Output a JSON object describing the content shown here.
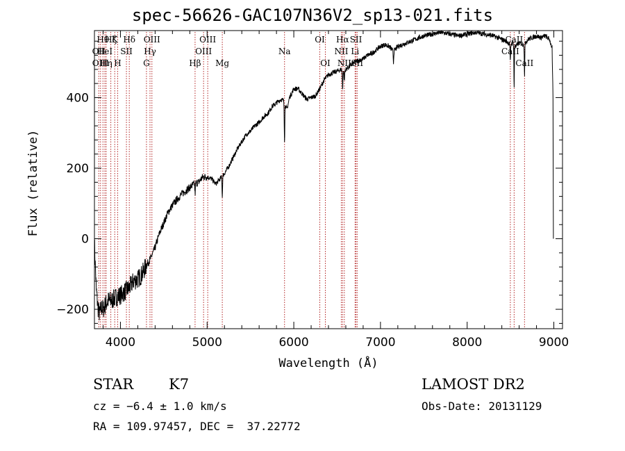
{
  "title": "spec-56626-GAC107N36V2_sp13-021.fits",
  "info": {
    "class": "STAR",
    "subclass": "K7",
    "cz": "cz = −6.4 ± 1.0 km/s",
    "coords": "RA = 109.97457, DEC =  37.22772",
    "survey": "LAMOST DR2",
    "obs_date": "Obs-Date: 20131129"
  },
  "colors": {
    "spectrum": "#000000",
    "lines": "#b22222",
    "frame": "#000000"
  },
  "chart_data": {
    "type": "line",
    "title": "spec-56626-GAC107N36V2_sp13-021.fits",
    "xlabel": "Wavelength (Å)",
    "ylabel": "Flux (relative)",
    "xlim": [
      3700,
      9100
    ],
    "ylim": [
      -255,
      590
    ],
    "xticks": [
      4000,
      5000,
      6000,
      7000,
      8000,
      9000
    ],
    "xtick_labels": [
      "4000",
      "5000",
      "6000",
      "7000",
      "8000",
      "9000"
    ],
    "yticks": [
      -200,
      0,
      200,
      400
    ],
    "ytick_labels": [
      "−200",
      "0",
      "200",
      "400"
    ],
    "grid": false,
    "spectrum": {
      "x": [
        3700,
        3720,
        3740,
        3760,
        3780,
        3800,
        3830,
        3860,
        3900,
        3950,
        4000,
        4050,
        4100,
        4150,
        4200,
        4250,
        4300,
        4350,
        4400,
        4450,
        4500,
        4550,
        4600,
        4650,
        4700,
        4750,
        4800,
        4850,
        4900,
        4950,
        5000,
        5050,
        5100,
        5150,
        5200,
        5250,
        5300,
        5350,
        5400,
        5450,
        5500,
        5550,
        5600,
        5650,
        5700,
        5750,
        5800,
        5850,
        5890,
        5920,
        5950,
        6000,
        6050,
        6100,
        6150,
        6200,
        6250,
        6300,
        6350,
        6400,
        6450,
        6500,
        6550,
        6563,
        6600,
        6650,
        6700,
        6750,
        6800,
        6850,
        6900,
        6950,
        7000,
        7050,
        7100,
        7150,
        7200,
        7300,
        7400,
        7500,
        7600,
        7700,
        7800,
        7900,
        8000,
        8100,
        8200,
        8300,
        8400,
        8450,
        8500,
        8540,
        8560,
        8600,
        8650,
        8700,
        8750,
        8800,
        8850,
        8900,
        8950,
        8980,
        8990,
        8995
      ],
      "y": [
        -10,
        -140,
        -195,
        -215,
        -195,
        -200,
        -185,
        -175,
        -175,
        -165,
        -160,
        -150,
        -140,
        -120,
        -115,
        -100,
        -75,
        -55,
        -25,
        15,
        45,
        75,
        95,
        110,
        125,
        135,
        145,
        155,
        160,
        175,
        175,
        170,
        155,
        170,
        185,
        205,
        230,
        255,
        275,
        295,
        305,
        320,
        330,
        345,
        355,
        375,
        385,
        395,
        390,
        365,
        400,
        425,
        425,
        410,
        395,
        400,
        405,
        425,
        450,
        465,
        470,
        475,
        480,
        470,
        480,
        490,
        500,
        505,
        510,
        520,
        525,
        535,
        545,
        550,
        545,
        530,
        545,
        555,
        565,
        575,
        580,
        585,
        580,
        575,
        580,
        585,
        580,
        575,
        565,
        560,
        550,
        560,
        545,
        555,
        550,
        565,
        570,
        575,
        570,
        575,
        565,
        540,
        400,
        0
      ]
    },
    "lines": [
      {
        "x": 3750,
        "label": "OII",
        "row": 2
      },
      {
        "x": 3770,
        "label": "OIII",
        "row": 3
      },
      {
        "x": 3798,
        "label": "Hθ",
        "row": 1
      },
      {
        "x": 3820,
        "label": "HeI",
        "row": 2
      },
      {
        "x": 3835,
        "label": "Hη",
        "row": 3
      },
      {
        "x": 3889,
        "label": "Hζ",
        "row": 1
      },
      {
        "x": 3934,
        "label": "K",
        "row": 1
      },
      {
        "x": 3968,
        "label": "H",
        "row": 3
      },
      {
        "x": 4069,
        "label": "SII",
        "row": 2
      },
      {
        "x": 4102,
        "label": "Hδ",
        "row": 1
      },
      {
        "x": 4300,
        "label": "G",
        "row": 3
      },
      {
        "x": 4341,
        "label": "Hγ",
        "row": 2
      },
      {
        "x": 4363,
        "label": "OIII",
        "row": 1
      },
      {
        "x": 4861,
        "label": "Hβ",
        "row": 3
      },
      {
        "x": 4959,
        "label": "OIII",
        "row": 2
      },
      {
        "x": 5007,
        "label": "OIII",
        "row": 1
      },
      {
        "x": 5175,
        "label": "Mg",
        "row": 3
      },
      {
        "x": 5893,
        "label": "Na",
        "row": 2
      },
      {
        "x": 6300,
        "label": "OI",
        "row": 1
      },
      {
        "x": 6364,
        "label": "OI",
        "row": 3
      },
      {
        "x": 6548,
        "label": "NII",
        "row": 2
      },
      {
        "x": 6563,
        "label": "Hα",
        "row": 1
      },
      {
        "x": 6583,
        "label": "NII",
        "row": 3
      },
      {
        "x": 6707,
        "label": "Li",
        "row": 2
      },
      {
        "x": 6717,
        "label": "SII",
        "row": 1
      },
      {
        "x": 6731,
        "label": "SII",
        "row": 3
      },
      {
        "x": 8498,
        "label": "CaII",
        "row": 2
      },
      {
        "x": 8542,
        "label": "CaII",
        "row": 1
      },
      {
        "x": 8662,
        "label": "CaII",
        "row": 3
      }
    ]
  }
}
